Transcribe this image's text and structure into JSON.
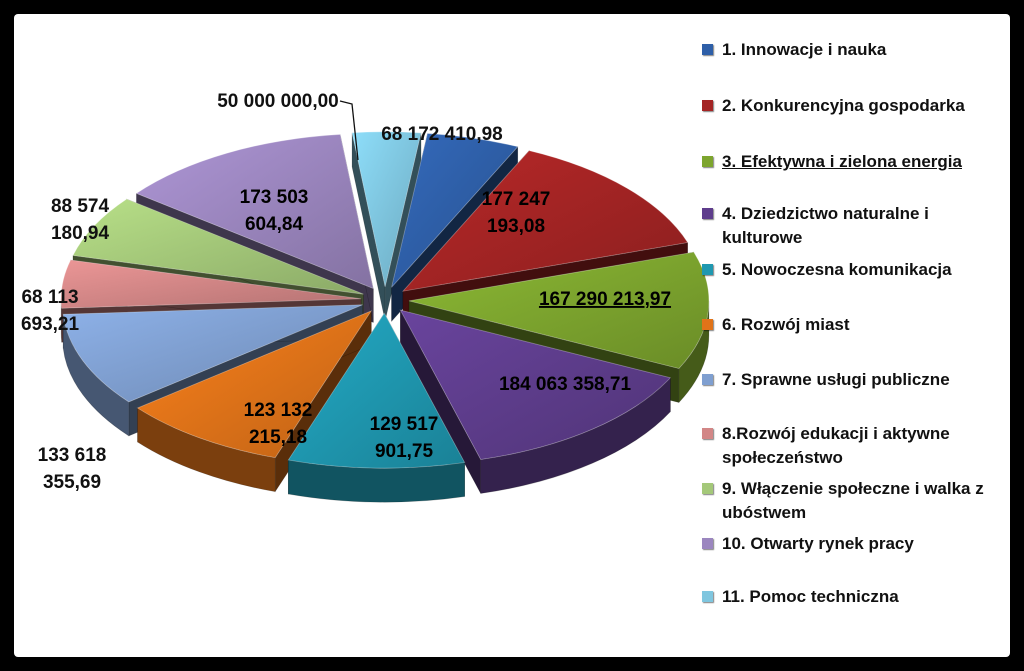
{
  "chart_data": {
    "type": "pie",
    "categories": [
      "1. Innowacje i nauka",
      "2. Konkurencyjna gospodarka",
      "3. Efektywna i zielona energia",
      "4. Dziedzictwo naturalne  i kulturowe",
      "5. Nowoczesna komunikacja",
      "6. Rozwój miast",
      "7. Sprawne usługi publiczne",
      "8.Rozwój edukacji i aktywne społeczeństwo",
      "9. Włączenie społeczne i walka z ubóstwem",
      "10. Otwarty rynek pracy",
      "11. Pomoc techniczna"
    ],
    "values": [
      68172410.98,
      177247193.08,
      167290213.97,
      184063358.71,
      129517901.75,
      123132215.18,
      133618355.69,
      68113693.21,
      88574180.94,
      173503604.84,
      50000000.0
    ],
    "labels": [
      [
        "68 172 410,98"
      ],
      [
        "177 247",
        "193,08"
      ],
      [
        "167 290 213,97"
      ],
      [
        "184 063 358,71"
      ],
      [
        "129 517",
        "901,75"
      ],
      [
        "123 132",
        "215,18"
      ],
      [
        "133 618",
        "355,69"
      ],
      [
        "68 113",
        "693,21"
      ],
      [
        "88 574",
        "180,94"
      ],
      [
        "173 503",
        "604,84"
      ],
      [
        "50 000 000,00"
      ]
    ],
    "colors": [
      "#2e5fa8",
      "#a42424",
      "#7da52e",
      "#5e3d8c",
      "#1f98b0",
      "#e07319",
      "#7f9fd0",
      "#d28686",
      "#a4c879",
      "#9b86bf",
      "#7fc6df"
    ],
    "legend_position": "right",
    "style": "exploded-3d"
  }
}
